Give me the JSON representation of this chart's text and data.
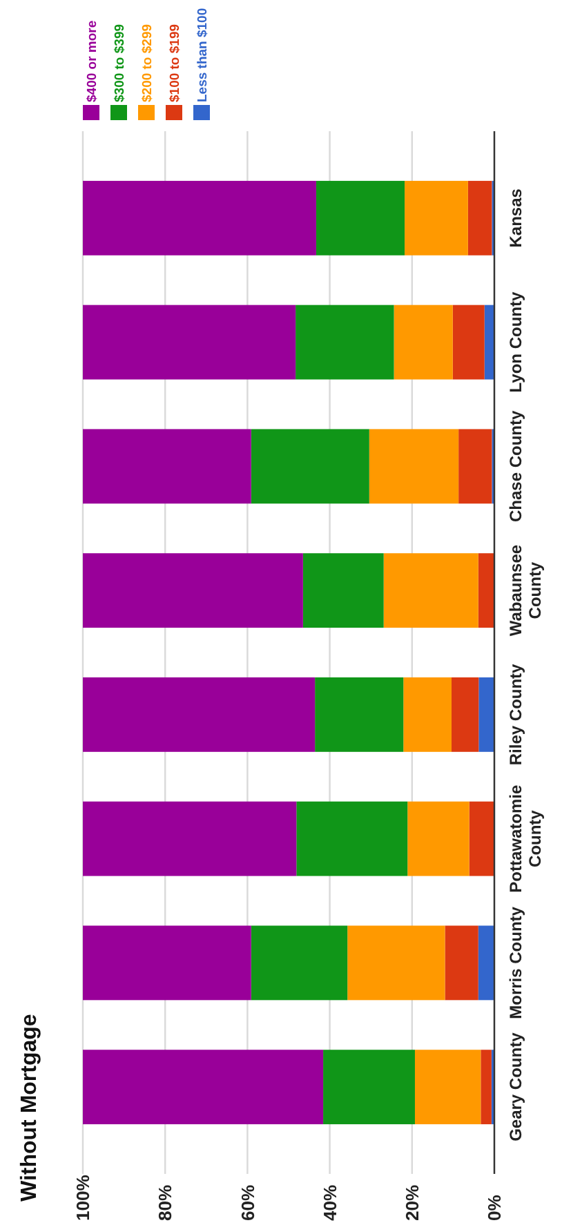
{
  "chart_data": {
    "type": "bar",
    "title": "Without Mortgage",
    "stacked": true,
    "orientation": "horizontal",
    "categories": [
      "Kansas",
      "Lyon County",
      "Chase County",
      "Wabaunsee County",
      "Riley County",
      "Pottawatomie County",
      "Morris County",
      "Geary County"
    ],
    "series": [
      {
        "name": "Less than $100",
        "color": "#3366cc",
        "values": [
          0.6,
          2.4,
          0.6,
          0,
          3.8,
          0,
          3.9,
          0.7
        ]
      },
      {
        "name": "$100 to $199",
        "color": "#dc3912",
        "values": [
          5.8,
          7.7,
          8.1,
          3.9,
          6.6,
          6.1,
          8.1,
          2.6
        ]
      },
      {
        "name": "$200 to $299",
        "color": "#ff9900",
        "values": [
          15.4,
          14.3,
          21.7,
          23.0,
          11.7,
          15.0,
          23.7,
          16.0
        ]
      },
      {
        "name": "$300 to $399",
        "color": "#109618",
        "values": [
          21.5,
          23.9,
          28.7,
          19.6,
          21.5,
          27.0,
          23.4,
          22.3
        ]
      },
      {
        "name": "$400 or more",
        "color": "#990099",
        "values": [
          56.7,
          51.7,
          40.9,
          53.5,
          56.4,
          51.9,
          40.9,
          58.4
        ]
      }
    ],
    "xlim": [
      100,
      0
    ],
    "xticks": [
      {
        "value": 100,
        "label": "100%"
      },
      {
        "value": 80,
        "label": "80%"
      },
      {
        "value": 60,
        "label": "60%"
      },
      {
        "value": 40,
        "label": "40%"
      },
      {
        "value": 20,
        "label": "20%"
      },
      {
        "value": 0,
        "label": "0%"
      }
    ],
    "grid": true,
    "legend": "top left"
  }
}
